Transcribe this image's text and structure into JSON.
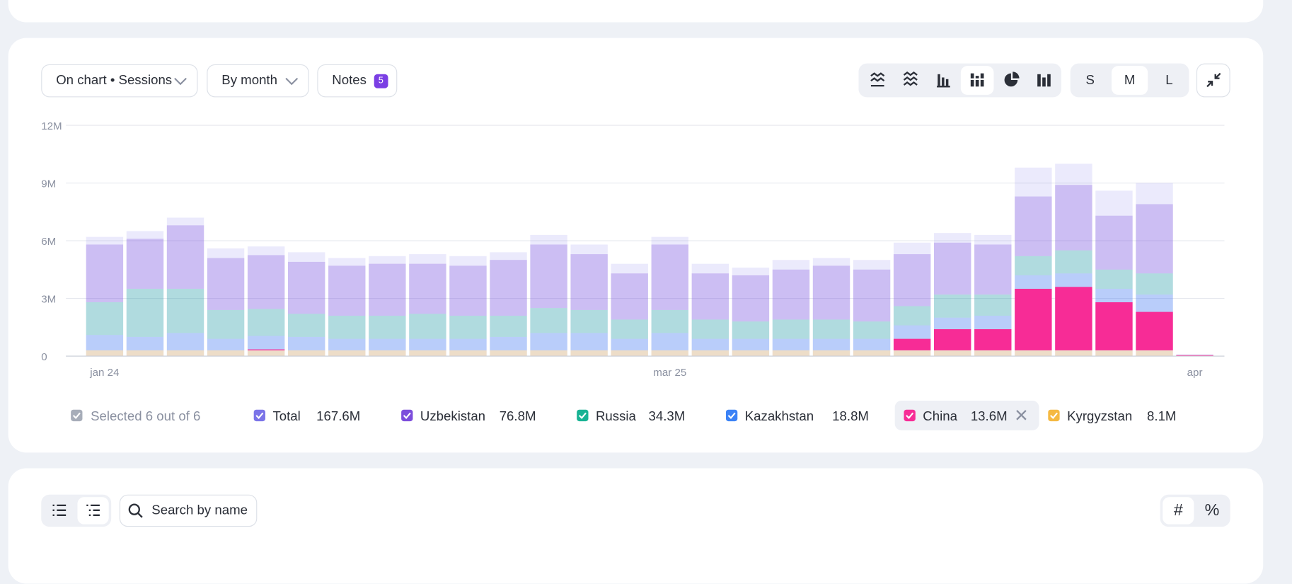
{
  "controls": {
    "metric": "On chart • Sessions",
    "period": "By month",
    "notes": "Notes",
    "notes_count": 5,
    "sizes": [
      "S",
      "M",
      "L"
    ]
  },
  "chart_data": {
    "type": "bar",
    "stacked": true,
    "total_series": "Total",
    "highlighted": "China",
    "selection_label": "Selected 6 out of 6",
    "categories": [
      "jan 24",
      null,
      null,
      null,
      null,
      null,
      null,
      null,
      null,
      null,
      null,
      null,
      null,
      null,
      "mar 25",
      null,
      null,
      null,
      null,
      null,
      null,
      null,
      null,
      null,
      null,
      null,
      null,
      "apr"
    ],
    "ylim": [
      0,
      12000000
    ],
    "yticks": [
      0,
      {
        "value": 3000000,
        "label": "3M"
      },
      {
        "value": 6000000,
        "label": "6M"
      },
      {
        "value": 9000000,
        "label": "9M"
      },
      {
        "value": 12000000,
        "label": "12M"
      }
    ],
    "grid": true,
    "series": [
      {
        "name": "Total",
        "color": "#7b74e8",
        "legend_value": {
          "value": 167600000,
          "label": "167.6M"
        },
        "values": [
          6200000,
          6500000,
          7200000,
          5600000,
          5700000,
          5400000,
          5100000,
          5200000,
          5300000,
          5200000,
          5400000,
          6300000,
          5800000,
          4800000,
          6200000,
          4800000,
          4600000,
          5000000,
          5100000,
          5000000,
          5900000,
          6400000,
          6300000,
          9800000,
          10000000,
          8600000,
          9000000,
          100000
        ]
      },
      {
        "name": "Uzbekistan",
        "color": "#7c4ddc",
        "legend_value": {
          "value": 76800000,
          "label": "76.8M"
        },
        "values": [
          3000000,
          2600000,
          3300000,
          2700000,
          2800000,
          2700000,
          2600000,
          2700000,
          2600000,
          2600000,
          2900000,
          3300000,
          2900000,
          2400000,
          3400000,
          2400000,
          2400000,
          2600000,
          2800000,
          2700000,
          2700000,
          2700000,
          2600000,
          3100000,
          3400000,
          2800000,
          3600000,
          0
        ]
      },
      {
        "name": "Russia",
        "color": "#19b394",
        "legend_value": {
          "value": 34300000,
          "label": "34.3M"
        },
        "values": [
          1700000,
          2500000,
          2300000,
          1500000,
          1400000,
          1200000,
          1200000,
          1200000,
          1300000,
          1200000,
          1100000,
          1300000,
          1200000,
          1000000,
          1200000,
          1000000,
          900000,
          1000000,
          1000000,
          900000,
          1000000,
          1200000,
          1100000,
          1000000,
          1200000,
          1000000,
          1100000,
          0
        ]
      },
      {
        "name": "Kazakhstan",
        "color": "#3b82f6",
        "legend_value": {
          "value": 18800000,
          "label": "18.8M"
        },
        "values": [
          800000,
          700000,
          900000,
          600000,
          700000,
          700000,
          600000,
          600000,
          600000,
          600000,
          700000,
          900000,
          900000,
          600000,
          900000,
          600000,
          600000,
          600000,
          600000,
          600000,
          700000,
          600000,
          700000,
          700000,
          700000,
          700000,
          900000,
          0
        ]
      },
      {
        "name": "China",
        "color": "#f72c96",
        "legend_value": {
          "value": 13600000,
          "label": "13.6M"
        },
        "values": [
          0,
          0,
          0,
          0,
          50000,
          0,
          0,
          0,
          0,
          0,
          0,
          0,
          0,
          0,
          0,
          0,
          0,
          0,
          0,
          0,
          600000,
          1100000,
          1100000,
          3200000,
          3300000,
          2500000,
          2000000,
          50000
        ]
      },
      {
        "name": "Kyrgyzstan",
        "color": "#f5b942",
        "legend_value": {
          "value": 8100000,
          "label": "8.1M"
        },
        "values": [
          300000,
          300000,
          300000,
          300000,
          300000,
          300000,
          300000,
          300000,
          300000,
          300000,
          300000,
          300000,
          300000,
          300000,
          300000,
          300000,
          300000,
          300000,
          300000,
          300000,
          300000,
          300000,
          300000,
          300000,
          300000,
          300000,
          300000,
          0
        ]
      }
    ]
  },
  "table_controls": {
    "search_placeholder": "Search by name",
    "modes": [
      "#",
      "%"
    ]
  }
}
